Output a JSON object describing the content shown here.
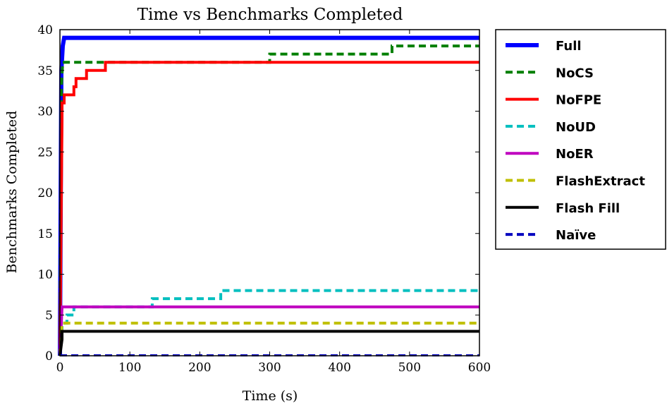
{
  "chart_data": {
    "type": "line",
    "title": "Time vs Benchmarks Completed",
    "xlabel": "Time (s)",
    "ylabel": "Benchmarks Completed",
    "xlim": [
      0,
      600
    ],
    "ylim": [
      0,
      40
    ],
    "xticks": [
      0,
      100,
      200,
      300,
      400,
      500,
      600
    ],
    "yticks": [
      0,
      5,
      10,
      15,
      20,
      25,
      30,
      35,
      40
    ],
    "grid": false,
    "legend_position": "outside-right",
    "series": [
      {
        "name": "Full",
        "color": "#0000ff",
        "style": "solid",
        "width": 6,
        "x": [
          0,
          2,
          4,
          6,
          600
        ],
        "y": [
          0,
          35,
          38,
          39,
          39
        ]
      },
      {
        "name": "NoCS",
        "color": "#007f00",
        "style": "dashed",
        "width": 4,
        "x": [
          0,
          2,
          4,
          300,
          300,
          475,
          475,
          600
        ],
        "y": [
          0,
          33,
          36,
          36,
          37,
          37,
          38,
          38
        ]
      },
      {
        "name": "NoFPE",
        "color": "#ff0000",
        "style": "solid",
        "width": 4,
        "x": [
          0,
          3,
          3,
          6,
          6,
          20,
          20,
          23,
          23,
          38,
          38,
          65,
          65,
          600
        ],
        "y": [
          0,
          29,
          31,
          31,
          32,
          32,
          33,
          33,
          34,
          34,
          35,
          35,
          36,
          36
        ]
      },
      {
        "name": "NoUD",
        "color": "#00bfbf",
        "style": "dashed",
        "width": 4,
        "x": [
          0,
          3,
          3,
          10,
          10,
          20,
          20,
          132,
          132,
          230,
          230,
          600
        ],
        "y": [
          0,
          3,
          4,
          4,
          5,
          5,
          6,
          6,
          7,
          7,
          8,
          8
        ]
      },
      {
        "name": "NoER",
        "color": "#bf00bf",
        "style": "solid",
        "width": 4,
        "x": [
          0,
          3,
          600
        ],
        "y": [
          0,
          6,
          6
        ]
      },
      {
        "name": "FlashExtract",
        "color": "#bfbf00",
        "style": "dashed",
        "width": 4,
        "x": [
          0,
          3,
          600
        ],
        "y": [
          0,
          4,
          4
        ]
      },
      {
        "name": "Flash Fill",
        "color": "#000000",
        "style": "solid",
        "width": 4,
        "x": [
          0,
          3,
          3,
          6,
          600
        ],
        "y": [
          0,
          2,
          3,
          3,
          3
        ]
      },
      {
        "name": "Naïve",
        "color": "#0000bf",
        "style": "dashed",
        "width": 3,
        "x": [
          0,
          600
        ],
        "y": [
          0.05,
          0.05
        ]
      }
    ]
  }
}
